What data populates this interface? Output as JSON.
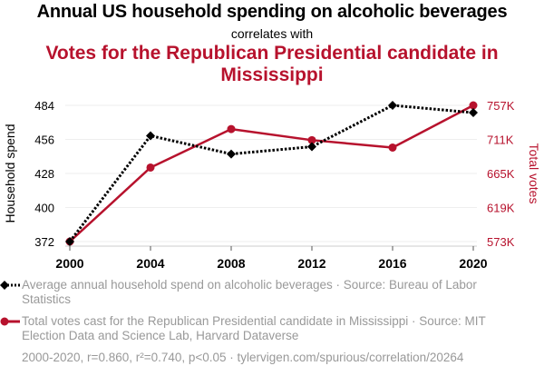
{
  "header": {
    "title": "Annual US household spending on alcoholic beverages",
    "subtitle": "correlates with",
    "title2": "Votes for the Republican Presidential candidate in Mississippi"
  },
  "legend": {
    "series1": "Average annual household spend on alcoholic beverages · Source: Bureau of Labor Statistics",
    "series2": "Total votes cast for the Republican Presidential candidate in Mississippi · Source: MIT Election Data and Science Lab, Harvard Dataverse"
  },
  "footer": "2000-2020, r=0.860, r²=0.740, p<0.05 · tylervigen.com/spurious/correlation/20264",
  "colors": {
    "series1": "#000000",
    "series2": "#b7122d",
    "grid": "#eeeeee",
    "axis_text": "#000000",
    "legend_text": "#999999"
  },
  "chart_data": {
    "type": "line",
    "title": "Annual US household spending on alcoholic beverages correlates with Votes for the Republican Presidential candidate in Mississippi",
    "x": [
      2000,
      2004,
      2008,
      2012,
      2016,
      2020
    ],
    "xticks": [
      "2000",
      "2004",
      "2008",
      "2012",
      "2016",
      "2020"
    ],
    "xlim": [
      2000,
      2020
    ],
    "ylabel_left": "Household spend",
    "ylabel_right": "Total votes",
    "ylim_left": [
      372,
      484
    ],
    "ylim_right": [
      573,
      757
    ],
    "yticks_left": [
      "372",
      "400",
      "428",
      "456",
      "484"
    ],
    "yticks_left_values": [
      372,
      400,
      428,
      456,
      484
    ],
    "yticks_right": [
      "573K",
      "619K",
      "665K",
      "711K",
      "757K"
    ],
    "yticks_right_values": [
      573,
      619,
      665,
      711,
      757
    ],
    "grid": true,
    "legend_position": "bottom",
    "series": [
      {
        "name": "Average annual household spend on alcoholic beverages",
        "axis": "left",
        "style": "dotted",
        "marker": "diamond",
        "color": "#000000",
        "values": [
          372,
          459,
          444,
          450,
          484,
          478
        ]
      },
      {
        "name": "Total votes cast for the Republican Presidential candidate in Mississippi (thousands)",
        "axis": "right",
        "style": "solid",
        "marker": "circle",
        "color": "#b7122d",
        "values": [
          573,
          673,
          725,
          710,
          700,
          757
        ]
      }
    ]
  }
}
